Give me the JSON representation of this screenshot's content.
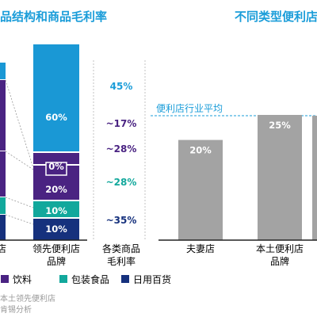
{
  "titles": {
    "left": "品结构和商品毛利率",
    "right": "不同类型便利店毛"
  },
  "colors": {
    "lightblue": "#1a98d5",
    "purple": "#4a2382",
    "teal": "#12a89c",
    "navy": "#16317d",
    "gray": "#a3a3a3",
    "title": "#1b9dd9"
  },
  "chart_data": [
    {
      "type": "bar",
      "stacked": true,
      "categories": [
        "店",
        "领先便利店品牌"
      ],
      "series": [
        {
          "name": "日用百货",
          "color": "#16317d",
          "values": [
            null,
            10
          ]
        },
        {
          "name": "包装食品",
          "color": "#12a89c",
          "values": [
            null,
            10
          ]
        },
        {
          "name": "饮料",
          "color": "#4a2382",
          "values": [
            null,
            20
          ]
        },
        {
          "name": "",
          "color": "#4a2382",
          "values": [
            null,
            0
          ]
        },
        {
          "name": "",
          "color": "#1a98d5",
          "values": [
            null,
            60
          ]
        }
      ],
      "data_labels": [
        "10%",
        "10%",
        "20%",
        "0%",
        "60%"
      ],
      "margin_column": {
        "label": "各类商品毛利率",
        "values": [
          "45%",
          "~17%",
          "~28%",
          "~28%",
          "~35%"
        ]
      },
      "legend": [
        "饮料",
        "包装食品",
        "日用百货"
      ],
      "legend_placement": "bottom"
    },
    {
      "type": "bar",
      "categories": [
        "夫妻店",
        "本土便利店品牌"
      ],
      "values": [
        20,
        25
      ],
      "data_labels": [
        "20%",
        "25%"
      ],
      "reference_line": {
        "label": "便利店行业平均"
      }
    }
  ],
  "footnotes": [
    "本土领先便利店",
    "肯锡分析"
  ]
}
